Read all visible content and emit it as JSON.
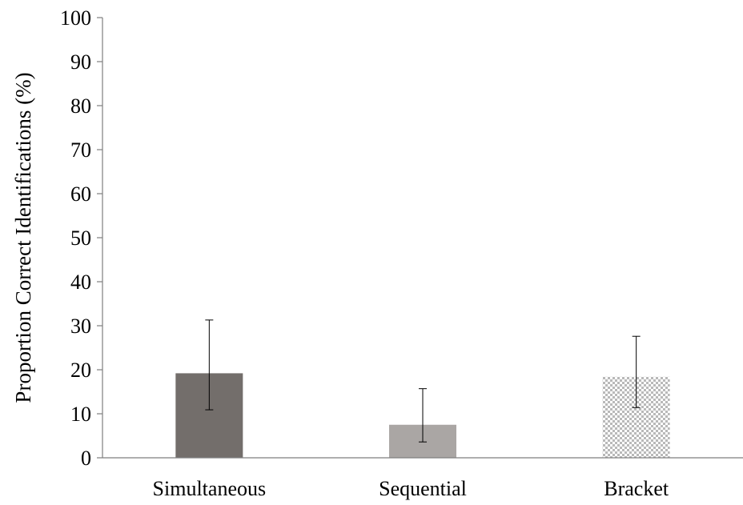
{
  "chart_data": {
    "type": "bar",
    "title": "",
    "xlabel": "",
    "ylabel": "Proportion Correct Identifications (%)",
    "ylim": [
      0,
      100
    ],
    "yticks": [
      "0",
      "10",
      "20",
      "30",
      "40",
      "50",
      "60",
      "70",
      "80",
      "90",
      "100"
    ],
    "grid": false,
    "legend": "none",
    "categories": [
      "Simultaneous",
      "Sequential",
      "Bracket"
    ],
    "values": [
      19.2,
      7.5,
      18.4
    ],
    "error_low": [
      10.9,
      3.6,
      11.4
    ],
    "error_high": [
      31.3,
      15.7,
      27.6
    ],
    "bar_styles": [
      {
        "fill": "solid",
        "color": "#736e6b"
      },
      {
        "fill": "solid",
        "color": "#aaa6a4"
      },
      {
        "fill": "checker",
        "color": "#b9b9b9"
      }
    ],
    "axis_color": "#7f7f7f",
    "errorbar_color": "#000000"
  }
}
